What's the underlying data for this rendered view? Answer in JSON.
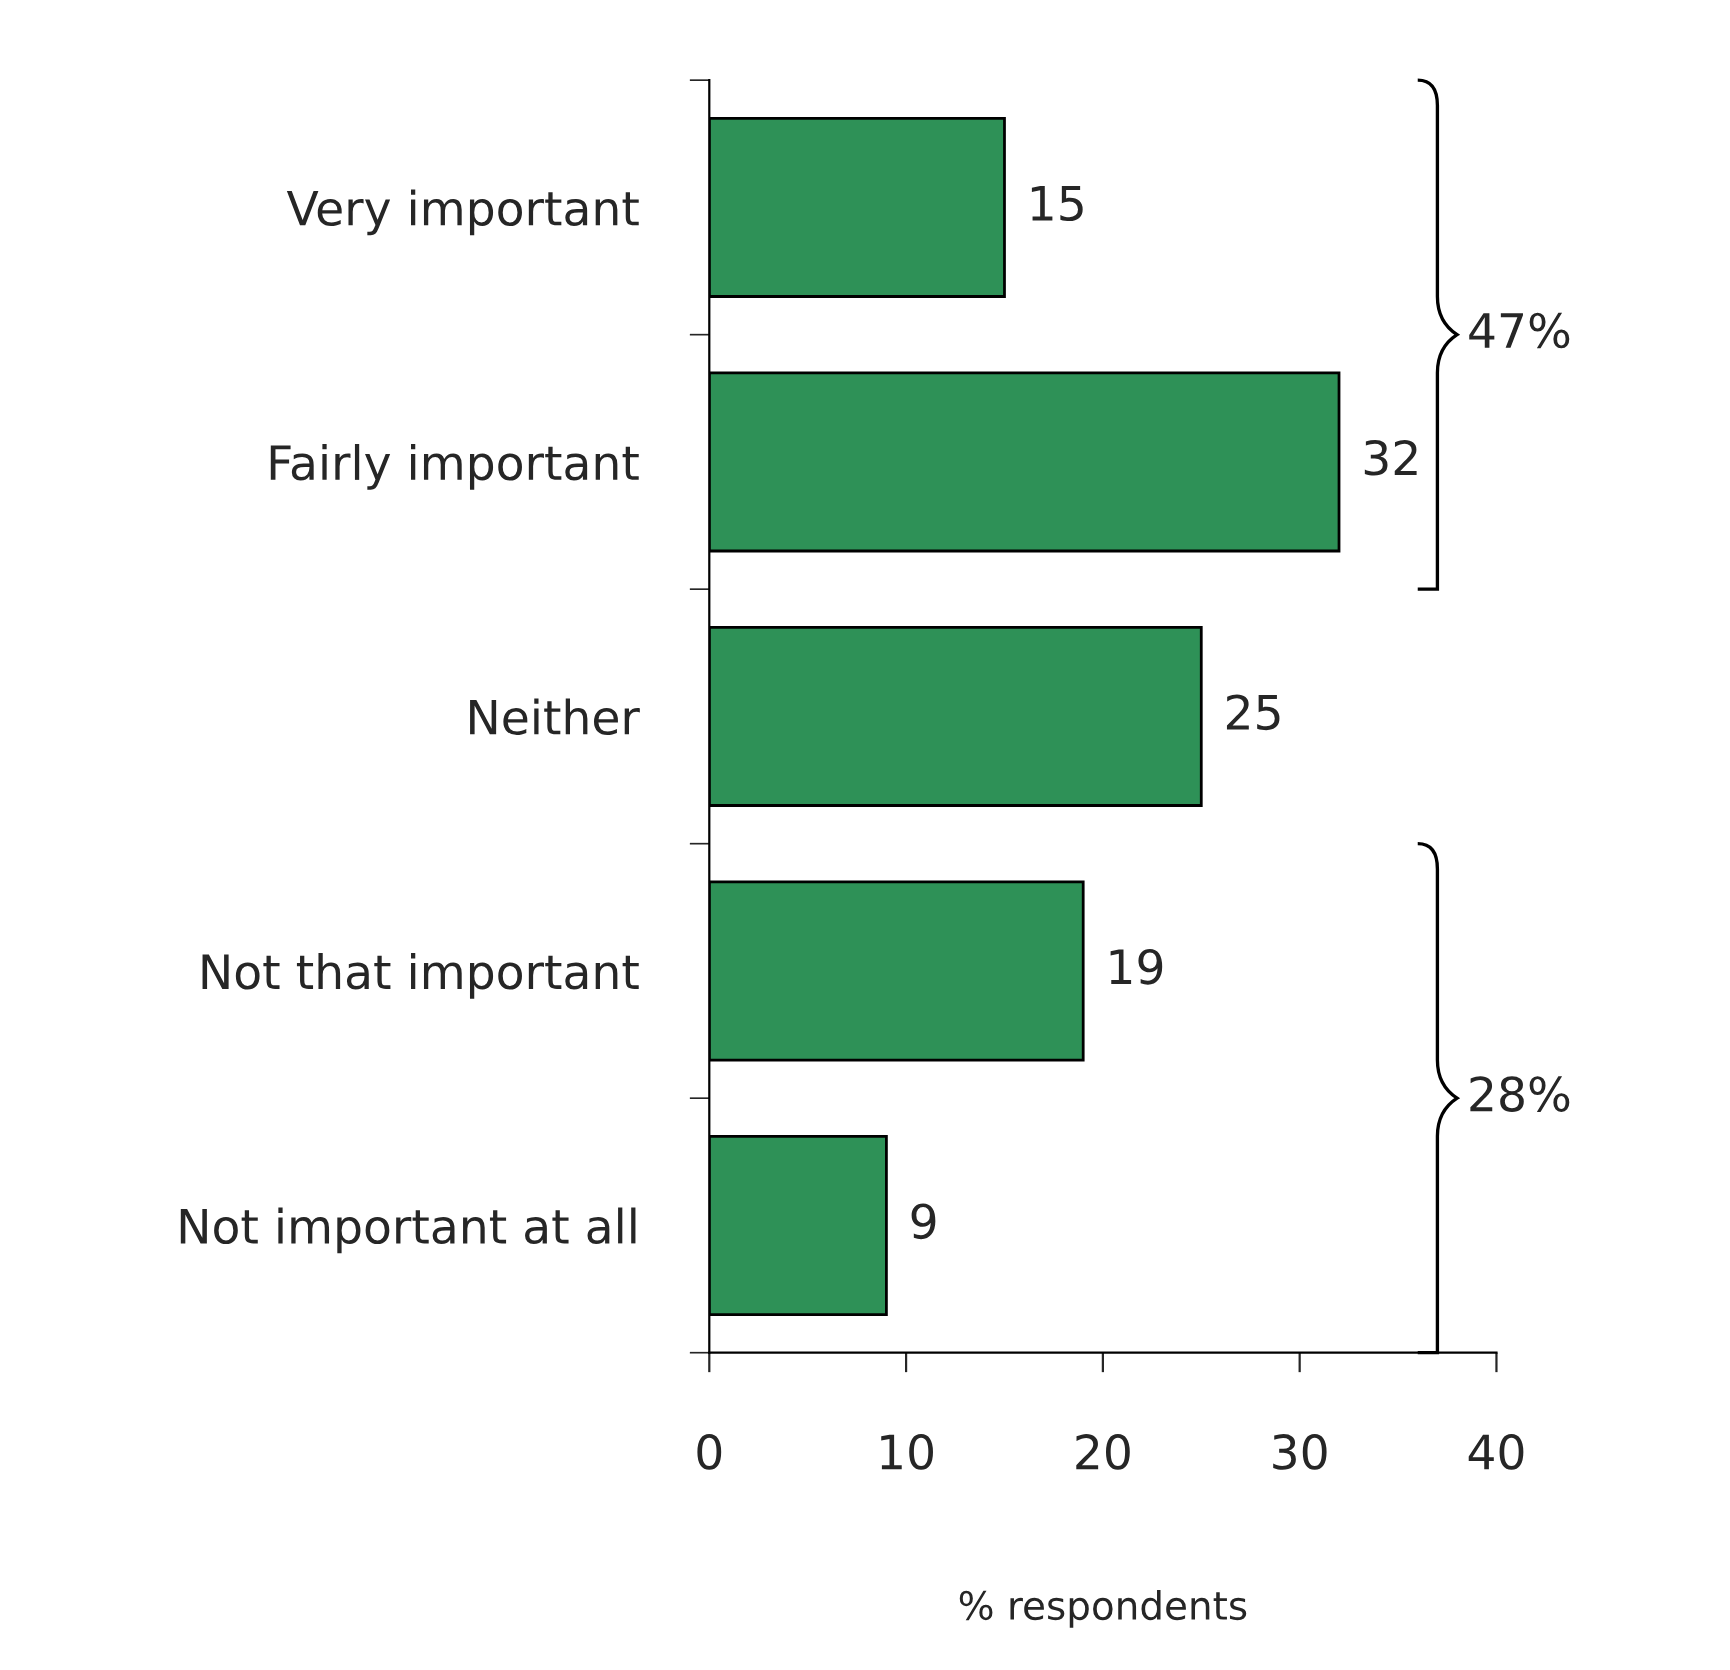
{
  "chart_data": {
    "type": "bar",
    "orientation": "horizontal",
    "categories": [
      "Very important",
      "Fairly important",
      "Neither",
      "Not that important",
      "Not important at all"
    ],
    "values": [
      15,
      32,
      25,
      19,
      9
    ],
    "color": "#2e9157",
    "xlabel": "% respondents",
    "xlim": [
      0,
      40
    ],
    "xticks": [
      0,
      10,
      20,
      30,
      40
    ],
    "data_labels": true,
    "grid": false,
    "legend": false,
    "annotations": [
      "47%",
      "28%"
    ]
  }
}
